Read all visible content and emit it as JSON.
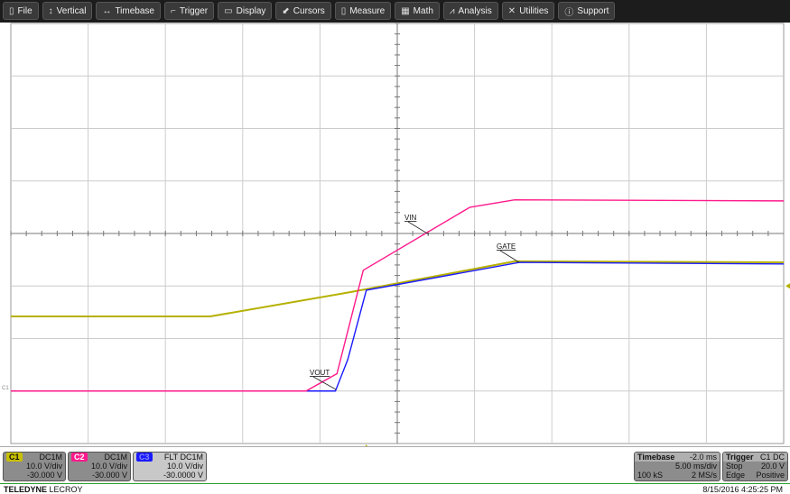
{
  "menu": [
    {
      "label": "File",
      "icon": "clipboard-icon"
    },
    {
      "label": "Vertical",
      "icon": "vertical-arrows-icon"
    },
    {
      "label": "Timebase",
      "icon": "horizontal-arrows-icon"
    },
    {
      "label": "Trigger",
      "icon": "trigger-flag-icon"
    },
    {
      "label": "Display",
      "icon": "display-icon"
    },
    {
      "label": "Cursors",
      "icon": "cursor-icon"
    },
    {
      "label": "Measure",
      "icon": "measure-icon"
    },
    {
      "label": "Math",
      "icon": "calculator-icon"
    },
    {
      "label": "Analysis",
      "icon": "chart-icon"
    },
    {
      "label": "Utilities",
      "icon": "tools-icon"
    },
    {
      "label": "Support",
      "icon": "info-icon"
    }
  ],
  "colors": {
    "C1": "#b5b000",
    "C2": "#ff1a8c",
    "C3": "#1a1aff"
  },
  "channels": [
    {
      "id": "C1",
      "coupling": "DC1M",
      "scale": "10.0 V/div",
      "offset": "-30.000 V"
    },
    {
      "id": "C2",
      "coupling": "DC1M",
      "scale": "10.0 V/div",
      "offset": "-30.000 V"
    },
    {
      "id": "C3",
      "coupling": "FLT DC1M",
      "scale": "10.0 V/div",
      "offset": "-30.0000 V"
    }
  ],
  "timebase": {
    "label": "Timebase",
    "delay": "-2.0 ms",
    "scale": "5.00 ms/div",
    "samples": "100 kS",
    "rate": "2 MS/s"
  },
  "trigger": {
    "label": "Trigger",
    "source": "C1 DC",
    "mode": "Stop",
    "level": "20.0 V",
    "type": "Edge",
    "slope": "Positive"
  },
  "brand": {
    "a": "TELEDYNE",
    "b": "LECROY"
  },
  "timestamp": "8/15/2016 4:25:25 PM",
  "ground_marker": "C1",
  "chart_data": {
    "type": "line",
    "xunit": "ms",
    "yunit": "V",
    "xlim": [
      -23,
      27
    ],
    "ylim": [
      -10,
      70
    ],
    "grid": true,
    "divisions": [
      10,
      8
    ],
    "series": [
      {
        "name": "VIN",
        "channel": "C1",
        "x": [
          -23,
          -10.1,
          -0.9,
          9.6,
          27
        ],
        "y": [
          14.2,
          14.2,
          18.9,
          24.7,
          24.5
        ]
      },
      {
        "name": "GATE",
        "channel": "C2",
        "x": [
          -23,
          -3.9,
          -1.9,
          -0.2,
          6.7,
          9.6,
          27
        ],
        "y": [
          0,
          0,
          3.3,
          23,
          35,
          36.4,
          36.2
        ]
      },
      {
        "name": "VOUT",
        "channel": "C3",
        "x": [
          -23,
          -2.0,
          -1.2,
          0,
          9.9,
          27
        ],
        "y": [
          0,
          0,
          6,
          19.2,
          24.5,
          24.2
        ]
      }
    ],
    "annotations": [
      {
        "text": "GATE",
        "series": "GATE"
      },
      {
        "text": "VIN",
        "series": "VIN"
      },
      {
        "text": "VOUT",
        "series": "VOUT"
      }
    ]
  }
}
